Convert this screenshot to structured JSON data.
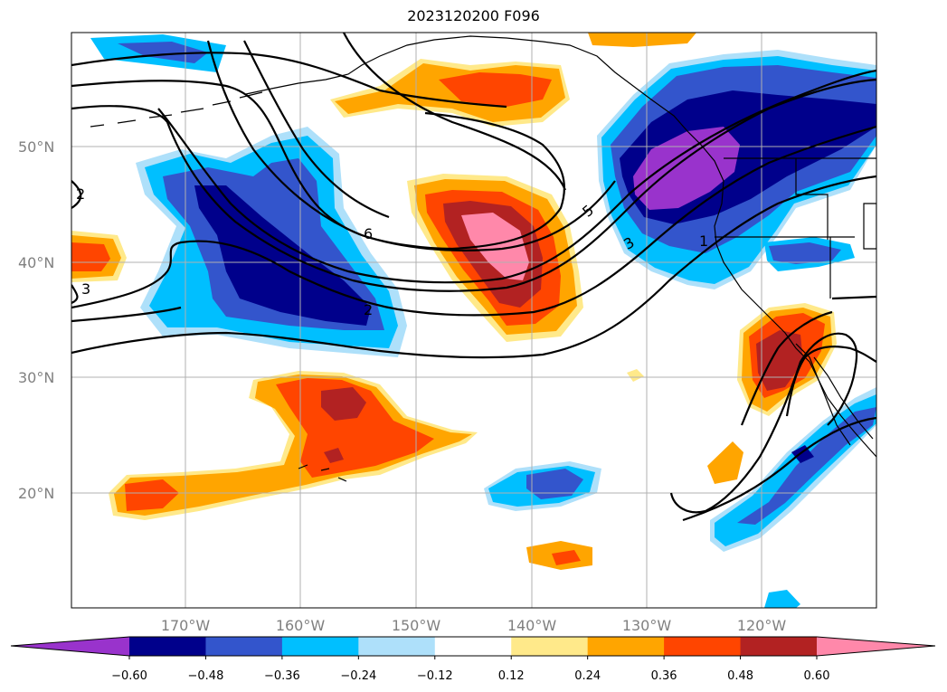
{
  "title": "2023120200 F096",
  "latitude_ticks": [
    "50°N",
    "40°N",
    "30°N",
    "20°N"
  ],
  "longitude_ticks": [
    "170°W",
    "160°W",
    "150°W",
    "140°W",
    "130°W",
    "120°W"
  ],
  "contour_labels": [
    "6",
    "5",
    "3",
    "2",
    "2",
    "3",
    "1"
  ],
  "colorbar": {
    "ticks": [
      "−0.60",
      "−0.48",
      "−0.36",
      "−0.24",
      "−0.12",
      "0.12",
      "0.24",
      "0.36",
      "0.48",
      "0.60"
    ],
    "colors": [
      "#9933cc",
      "#00008b",
      "#3355cc",
      "#00bfff",
      "#aee0fa",
      "#ffffff",
      "#ffe98a",
      "#ffa500",
      "#ff4500",
      "#b22222",
      "#ff88aa"
    ]
  },
  "palette": {
    "purple": "#9933cc",
    "navy": "#00008b",
    "blue": "#3355cc",
    "sky": "#00bfff",
    "pale_blue": "#aee0fa",
    "yellow": "#ffe98a",
    "orange": "#ffa500",
    "red_orange": "#ff4500",
    "dark_red": "#b22222",
    "pink": "#ff88aa",
    "grid": "#b0b0b0",
    "coast": "#000000"
  }
}
